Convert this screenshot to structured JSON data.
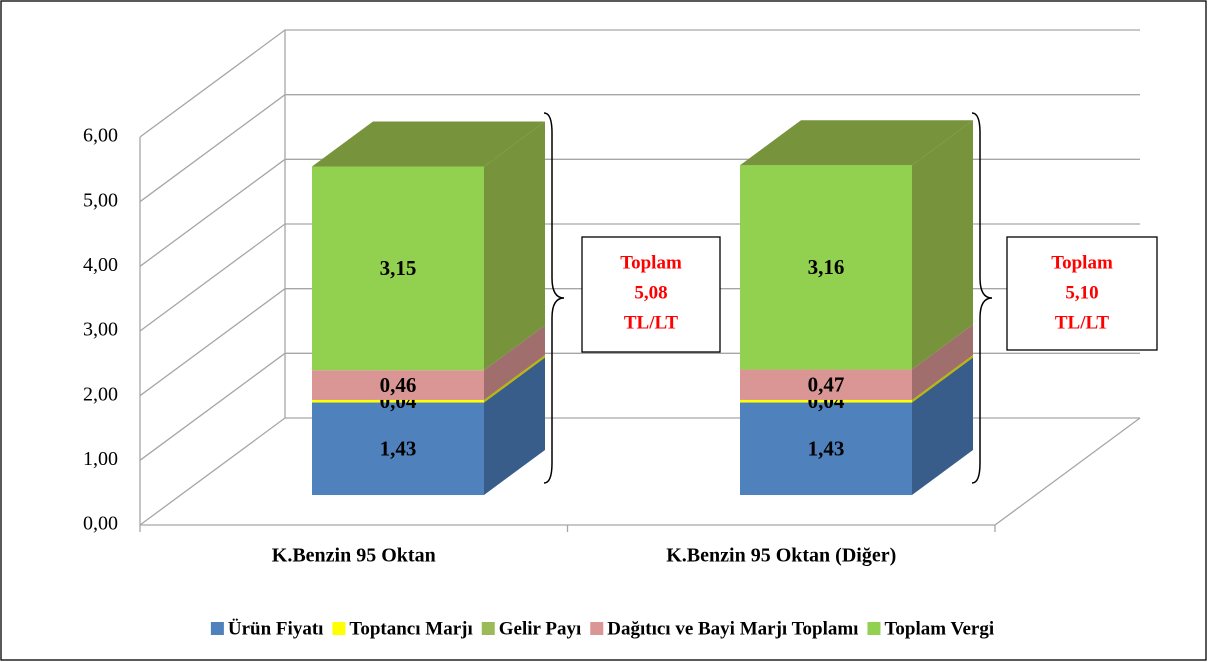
{
  "chart_data": {
    "type": "bar3d_stacked",
    "categories": [
      "K.Benzin 95 Oktan",
      "K.Benzin 95 Oktan (Diğer)"
    ],
    "series": [
      {
        "name": "Ürün Fiyatı",
        "color": "#4f81bd",
        "side_color": "#385d8a",
        "values": [
          1.43,
          1.43
        ],
        "value_labels": [
          "1,43",
          "1,43"
        ]
      },
      {
        "name": "Toptancı Marjı",
        "color": "#ffff00",
        "side_color": "#b8b800",
        "values": [
          0.04,
          0.04
        ],
        "value_labels": [
          "0,04",
          "0,04"
        ]
      },
      {
        "name": "Gelir Payı",
        "color": "#9bbb59",
        "side_color": "#71893f",
        "values": [
          0,
          0
        ]
      },
      {
        "name": "Dağıtıcı ve Bayi Marjı Toplamı",
        "color": "#d99694",
        "side_color": "#a06e6c",
        "values": [
          0.46,
          0.47
        ],
        "value_labels": [
          "0,46",
          "0,47"
        ]
      },
      {
        "name": "Toplam Vergi",
        "color": "#92d050",
        "side_color": "#77933c",
        "values": [
          3.15,
          3.16
        ],
        "value_labels": [
          "3,15",
          "3,16"
        ]
      }
    ],
    "ylim": [
      0,
      6
    ],
    "yticks": [
      {
        "value": 0,
        "label": "0,00"
      },
      {
        "value": 1,
        "label": "1,00"
      },
      {
        "value": 2,
        "label": "2,00"
      },
      {
        "value": 3,
        "label": "3,00"
      },
      {
        "value": 4,
        "label": "4,00"
      },
      {
        "value": 5,
        "label": "5,00"
      },
      {
        "value": 6,
        "label": "6,00"
      }
    ],
    "grid": true,
    "legend": "bottom",
    "annotations": [
      {
        "lines": [
          "Toplam",
          "5,08",
          "TL/LT"
        ]
      },
      {
        "lines": [
          "Toplam",
          "5,10",
          "TL/LT"
        ]
      }
    ]
  }
}
